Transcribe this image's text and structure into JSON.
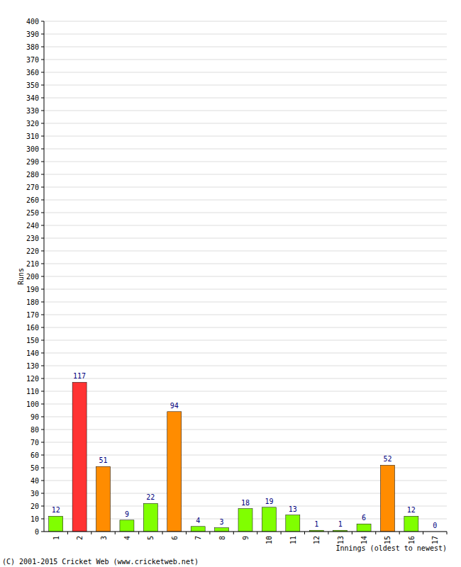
{
  "chart_data": {
    "type": "bar",
    "categories": [
      "1",
      "2",
      "3",
      "4",
      "5",
      "6",
      "7",
      "8",
      "9",
      "10",
      "11",
      "12",
      "13",
      "14",
      "15",
      "16",
      "17"
    ],
    "values": [
      12,
      117,
      51,
      9,
      22,
      94,
      4,
      3,
      18,
      19,
      13,
      1,
      1,
      6,
      52,
      12,
      0
    ],
    "colors": [
      "#80ff00",
      "#ff3333",
      "#ff8c00",
      "#80ff00",
      "#80ff00",
      "#ff8c00",
      "#80ff00",
      "#80ff00",
      "#80ff00",
      "#80ff00",
      "#80ff00",
      "#80ff00",
      "#80ff00",
      "#80ff00",
      "#ff8c00",
      "#80ff00",
      "#80ff00"
    ],
    "y_label": "Runs",
    "x_label": "Innings (oldest to newest)",
    "annotations": [
      "(C) 2001-2015 Cricket Web (www.cricketweb.net)"
    ],
    "ylim": [
      0,
      400
    ],
    "yticks": [
      0,
      10,
      20,
      30,
      40,
      50,
      60,
      70,
      80,
      90,
      100,
      110,
      120,
      130,
      140,
      150,
      160,
      170,
      180,
      190,
      200,
      210,
      220,
      230,
      240,
      250,
      260,
      270,
      280,
      290,
      300,
      310,
      320,
      330,
      340,
      350,
      360,
      370,
      380,
      390,
      400
    ],
    "grid": true,
    "data_labels": true
  }
}
